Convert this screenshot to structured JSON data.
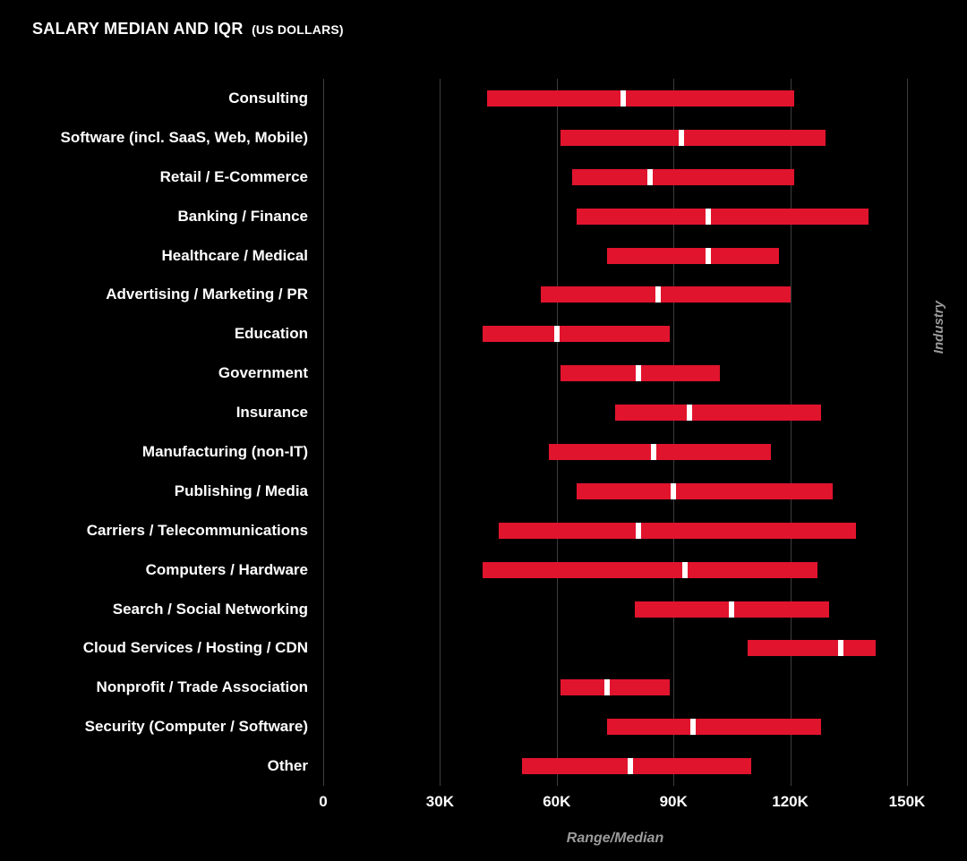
{
  "chart_data": {
    "type": "bar",
    "variant": "horizontal-floating-range-bars-with-median-marker",
    "title": "SALARY MEDIAN AND IQR (US DOLLARS)",
    "title_main": "SALARY MEDIAN AND IQR",
    "title_note": "(US DOLLARS)",
    "xlabel": "Range/Median",
    "right_axis_label": "Industry",
    "unit": "US dollars (values in thousands)",
    "xlim_thousands": [
      0,
      150
    ],
    "grid": "vertical",
    "legend": "none",
    "x_ticks": [
      {
        "value": 0,
        "label": "0"
      },
      {
        "value": 30,
        "label": "30K"
      },
      {
        "value": 60,
        "label": "60K"
      },
      {
        "value": 90,
        "label": "90K"
      },
      {
        "value": 120,
        "label": "120K"
      },
      {
        "value": 150,
        "label": "150K"
      }
    ],
    "colors": {
      "background": "#000000",
      "bar": "#e1142d",
      "median_marker": "#ffffff",
      "gridline": "#3d3d3d",
      "category_text": "#ffffff",
      "tick_text": "#ffffff",
      "axis_title_text": "#9b9b9b"
    },
    "categories": [
      "Consulting",
      "Software (incl. SaaS, Web, Mobile)",
      "Retail / E-Commerce",
      "Banking / Finance",
      "Healthcare / Medical",
      "Advertising / Marketing / PR",
      "Education",
      "Government",
      "Insurance",
      "Manufacturing (non-IT)",
      "Publishing / Media",
      "Carriers / Telecommunications",
      "Computers / Hardware",
      "Search / Social Networking",
      "Cloud Services / Hosting / CDN",
      "Nonprofit / Trade Association",
      "Security (Computer / Software)",
      "Other"
    ],
    "series": [
      {
        "name": "IQR lower (Q1)",
        "values": [
          42,
          61,
          64,
          65,
          73,
          56,
          41,
          61,
          75,
          58,
          65,
          45,
          41,
          80,
          109,
          61,
          73,
          51
        ]
      },
      {
        "name": "Median",
        "values": [
          77,
          92,
          84,
          99,
          99,
          86,
          60,
          81,
          94,
          85,
          90,
          81,
          93,
          105,
          133,
          73,
          95,
          79
        ]
      },
      {
        "name": "IQR upper (Q3)",
        "values": [
          121,
          129,
          121,
          140,
          117,
          120,
          89,
          102,
          128,
          115,
          131,
          137,
          127,
          130,
          142,
          89,
          128,
          110
        ]
      }
    ]
  }
}
